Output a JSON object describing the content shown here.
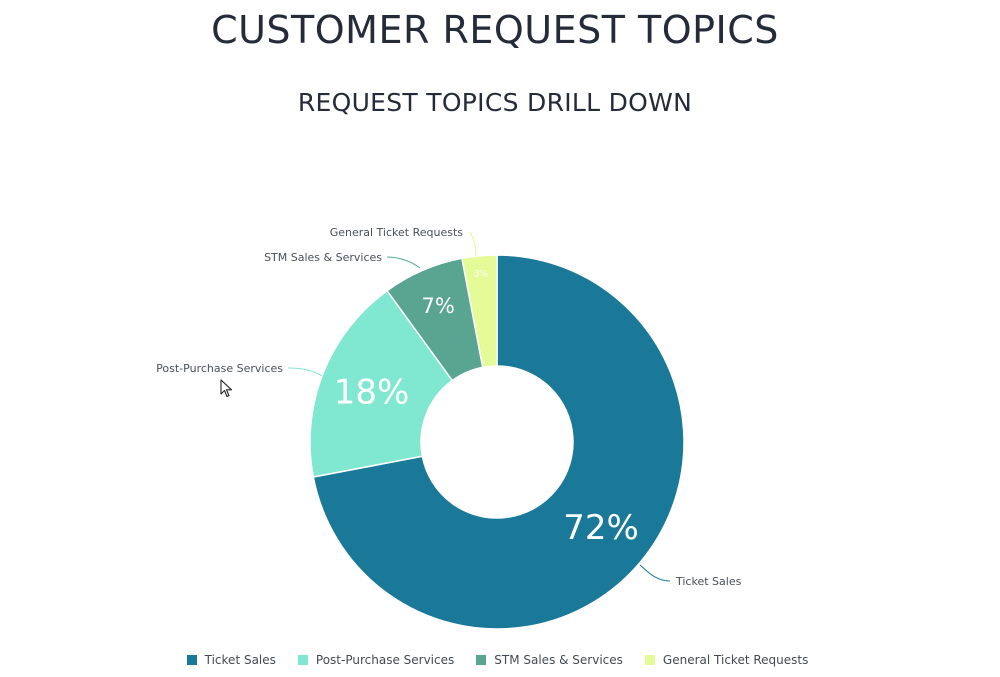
{
  "page": {
    "title": "CUSTOMER REQUEST TOPICS",
    "subtitle": "REQUEST TOPICS DRILL DOWN"
  },
  "chart_data": {
    "type": "pie",
    "donut": true,
    "title": "REQUEST TOPICS DRILL DOWN",
    "legend_position": "bottom",
    "series": [
      {
        "name": "Ticket Sales",
        "value": 72,
        "label": "72%",
        "color": "#1a7899"
      },
      {
        "name": "Post-Purchase Services",
        "value": 18,
        "label": "18%",
        "color": "#80e8d1"
      },
      {
        "name": "STM Sales & Services",
        "value": 7,
        "label": "7%",
        "color": "#5aa592"
      },
      {
        "name": "General Ticket Requests",
        "value": 3,
        "label": "3%",
        "color": "#e4fb97"
      }
    ]
  }
}
